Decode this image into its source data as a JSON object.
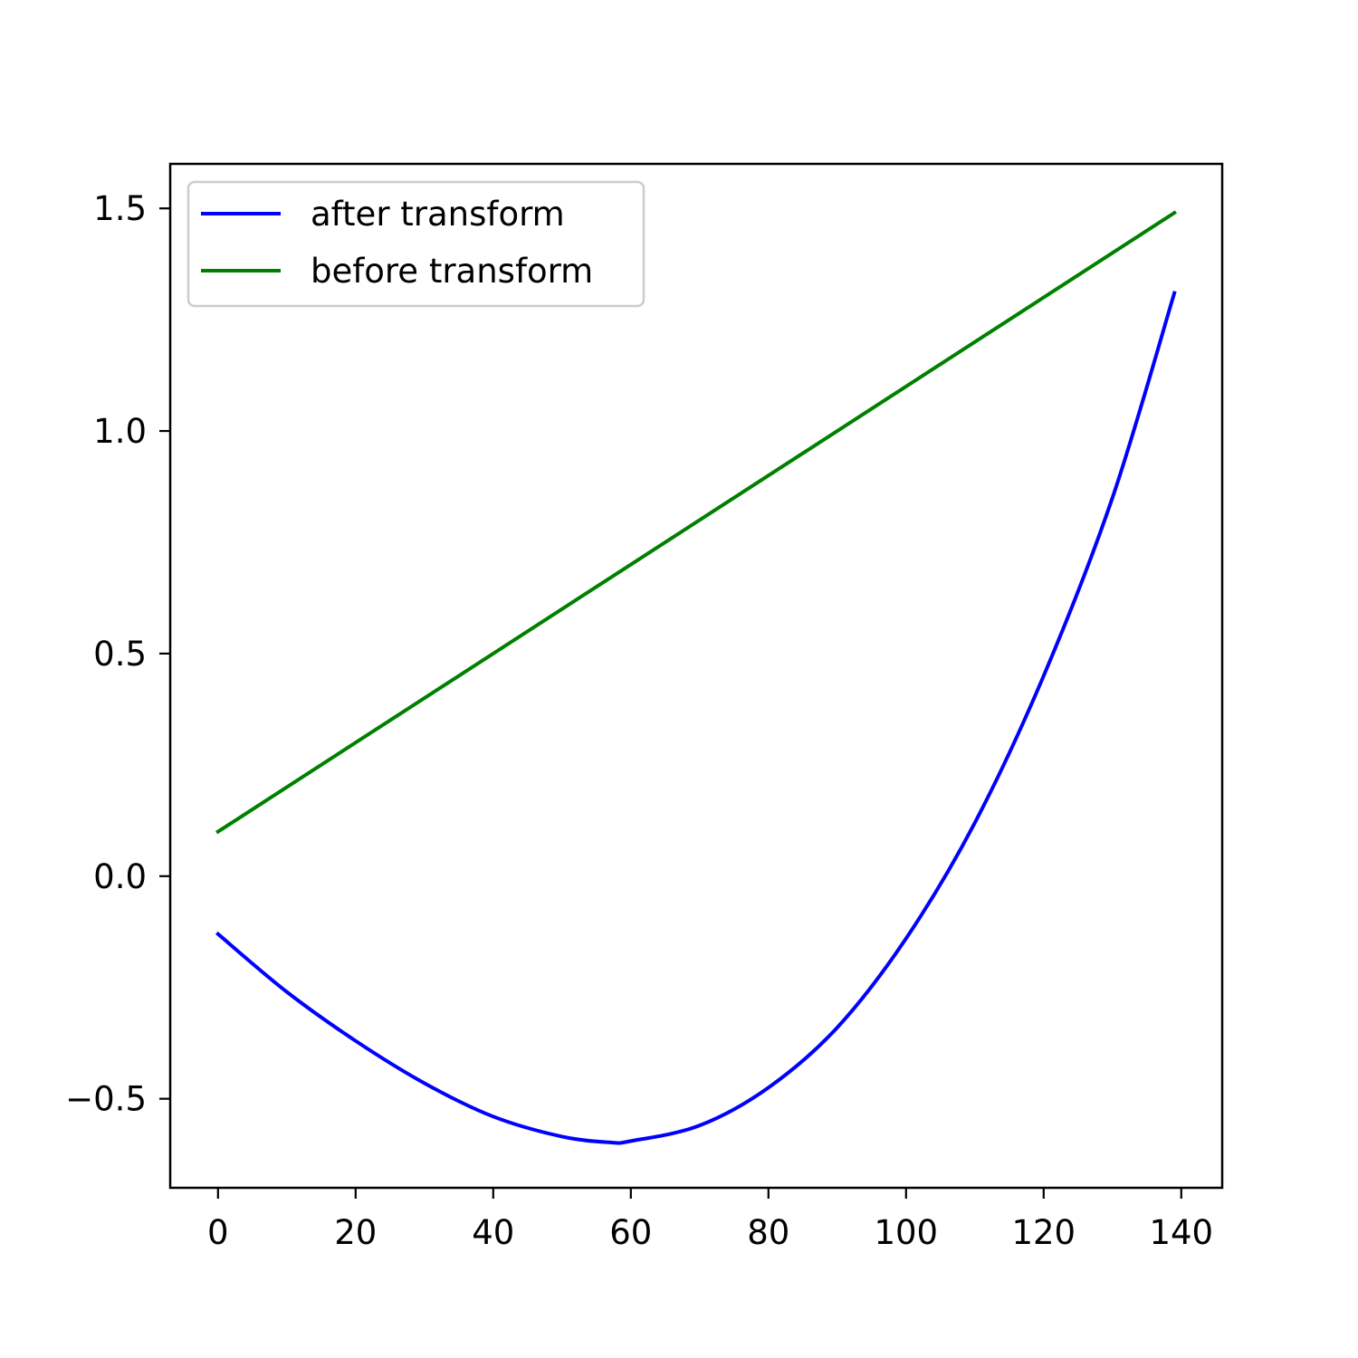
{
  "chart_data": {
    "type": "line",
    "title": "",
    "xlabel": "",
    "ylabel": "",
    "xlim": [
      -6.95,
      145.95
    ],
    "ylim": [
      -0.7,
      1.6
    ],
    "x_ticks": [
      0,
      20,
      40,
      60,
      80,
      100,
      120,
      140
    ],
    "x_tick_labels": [
      "0",
      "20",
      "40",
      "60",
      "80",
      "100",
      "120",
      "140"
    ],
    "y_ticks": [
      -0.5,
      0.0,
      0.5,
      1.0,
      1.5
    ],
    "y_tick_labels": [
      "−0.5",
      "0.0",
      "0.5",
      "1.0",
      "1.5"
    ],
    "grid": false,
    "legend": {
      "placement": "upper left"
    },
    "series": [
      {
        "name": "after transform",
        "color": "#0000ff",
        "x": [
          0,
          10,
          20,
          30,
          40,
          50,
          57,
          60,
          70,
          80,
          90,
          100,
          110,
          120,
          130,
          139
        ],
        "y": [
          -0.13,
          -0.26,
          -0.37,
          -0.465,
          -0.54,
          -0.585,
          -0.598,
          -0.595,
          -0.56,
          -0.475,
          -0.34,
          -0.14,
          0.12,
          0.45,
          0.85,
          1.31
        ]
      },
      {
        "name": "before transform",
        "color": "#008000",
        "x": [
          0,
          139
        ],
        "y": [
          0.1,
          1.49
        ]
      }
    ]
  }
}
